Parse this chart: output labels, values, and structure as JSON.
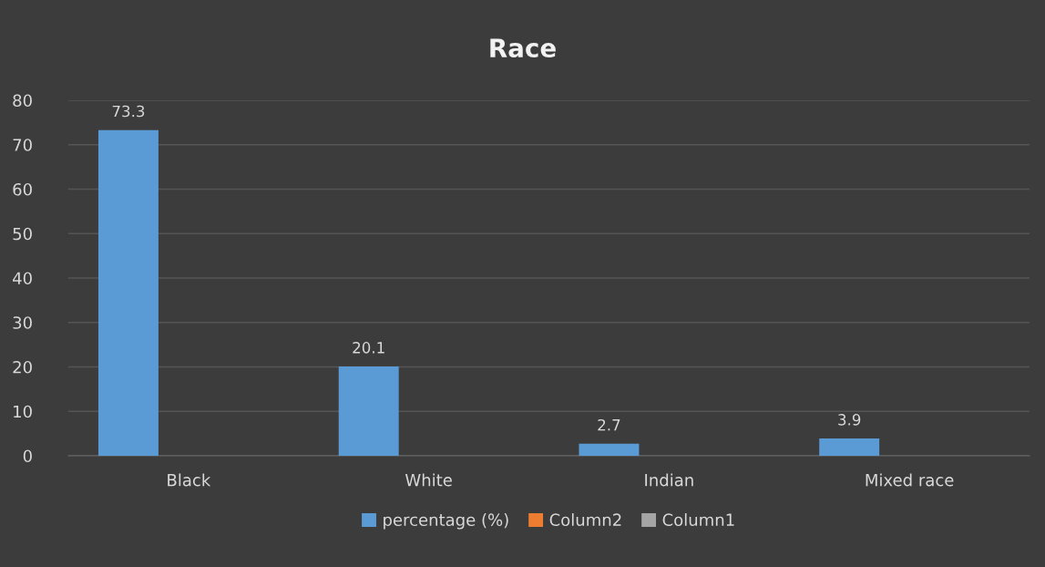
{
  "chart_data": {
    "type": "bar",
    "title": "Race",
    "categories": [
      "Black",
      "White",
      "Indian",
      "Mixed race"
    ],
    "series": [
      {
        "name": "percentage (%)",
        "color": "#5b9bd5",
        "values": [
          73.3,
          20.1,
          2.7,
          3.9
        ]
      },
      {
        "name": "Column2",
        "color": "#ed7d31",
        "values": [
          null,
          null,
          null,
          null
        ]
      },
      {
        "name": "Column1",
        "color": "#a5a5a5",
        "values": [
          null,
          null,
          null,
          null
        ]
      }
    ],
    "ylim": [
      0,
      80
    ],
    "yticks": [
      0,
      10,
      20,
      30,
      40,
      50,
      60,
      70,
      80
    ],
    "grid": "y",
    "legend": "bottom",
    "data_labels": true
  }
}
